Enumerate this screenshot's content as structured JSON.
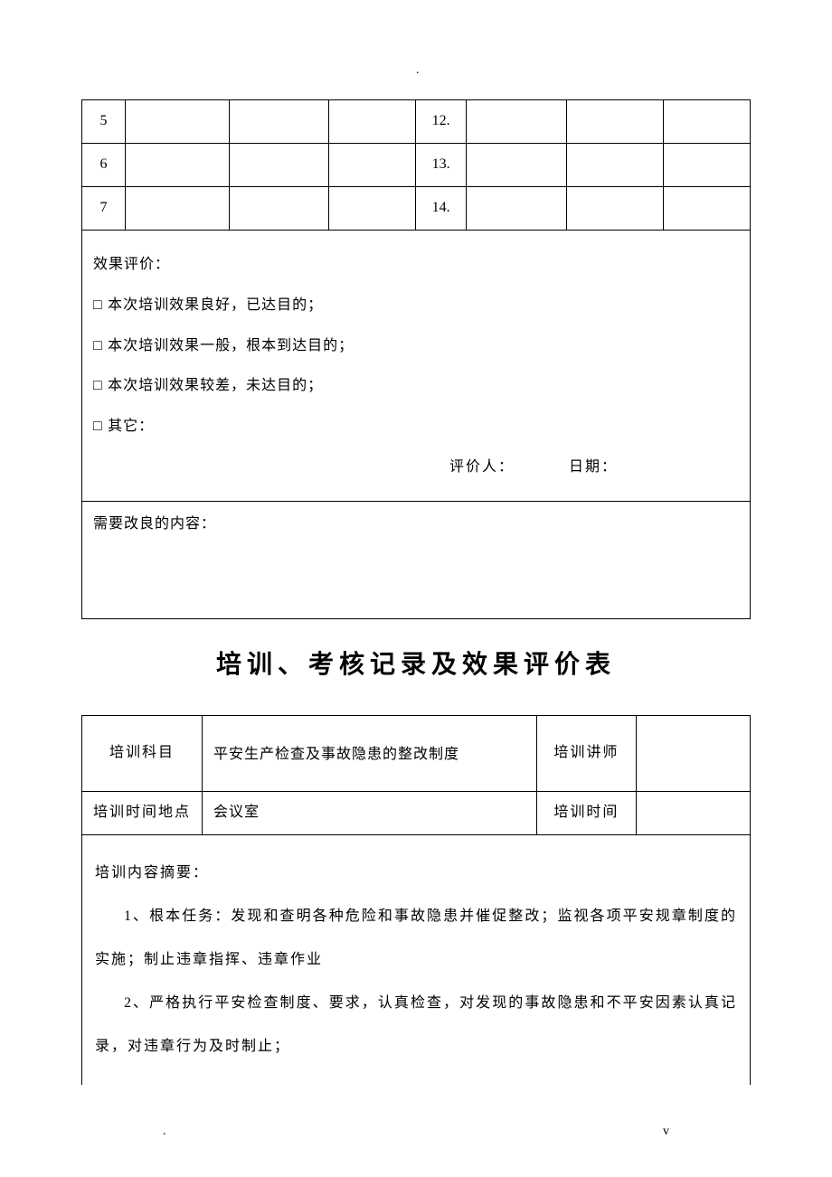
{
  "marks": {
    "top": ".",
    "bottomLeft": ".",
    "bottomRight": "v"
  },
  "table1": {
    "rows": [
      {
        "left": "5",
        "right": "12."
      },
      {
        "left": "6",
        "right": "13."
      },
      {
        "left": "7",
        "right": "14."
      }
    ],
    "eval": {
      "head": "效果评价：",
      "opt1": "□ 本次培训效果良好，已达目的；",
      "opt2": "□ 本次培训效果一般，根本到达目的；",
      "opt3": "□ 本次培训效果较差，未达目的；",
      "opt4": "□ 其它：",
      "signer": "评价人：",
      "date": "日期："
    },
    "improve": "需要改良的内容："
  },
  "title": "培训、考核记录及效果评价表",
  "table2": {
    "r1": {
      "label": "培训科目",
      "value": "平安生产检查及事故隐患的整改制度",
      "label2": "培训讲师",
      "value2": ""
    },
    "r2": {
      "label": "培训时间地点",
      "value": "会议室",
      "label2": "培训时间",
      "value2": ""
    },
    "summary": {
      "head": "培训内容摘要：",
      "p1": "1、根本任务：发现和查明各种危险和事故隐患并催促整改；监视各项平安规章制度的实施；制止违章指挥、违章作业",
      "p2": "2、严格执行平安检查制度、要求，认真检查，对发现的事故隐患和不平安因素认真记录，对违章行为及时制止；"
    }
  }
}
